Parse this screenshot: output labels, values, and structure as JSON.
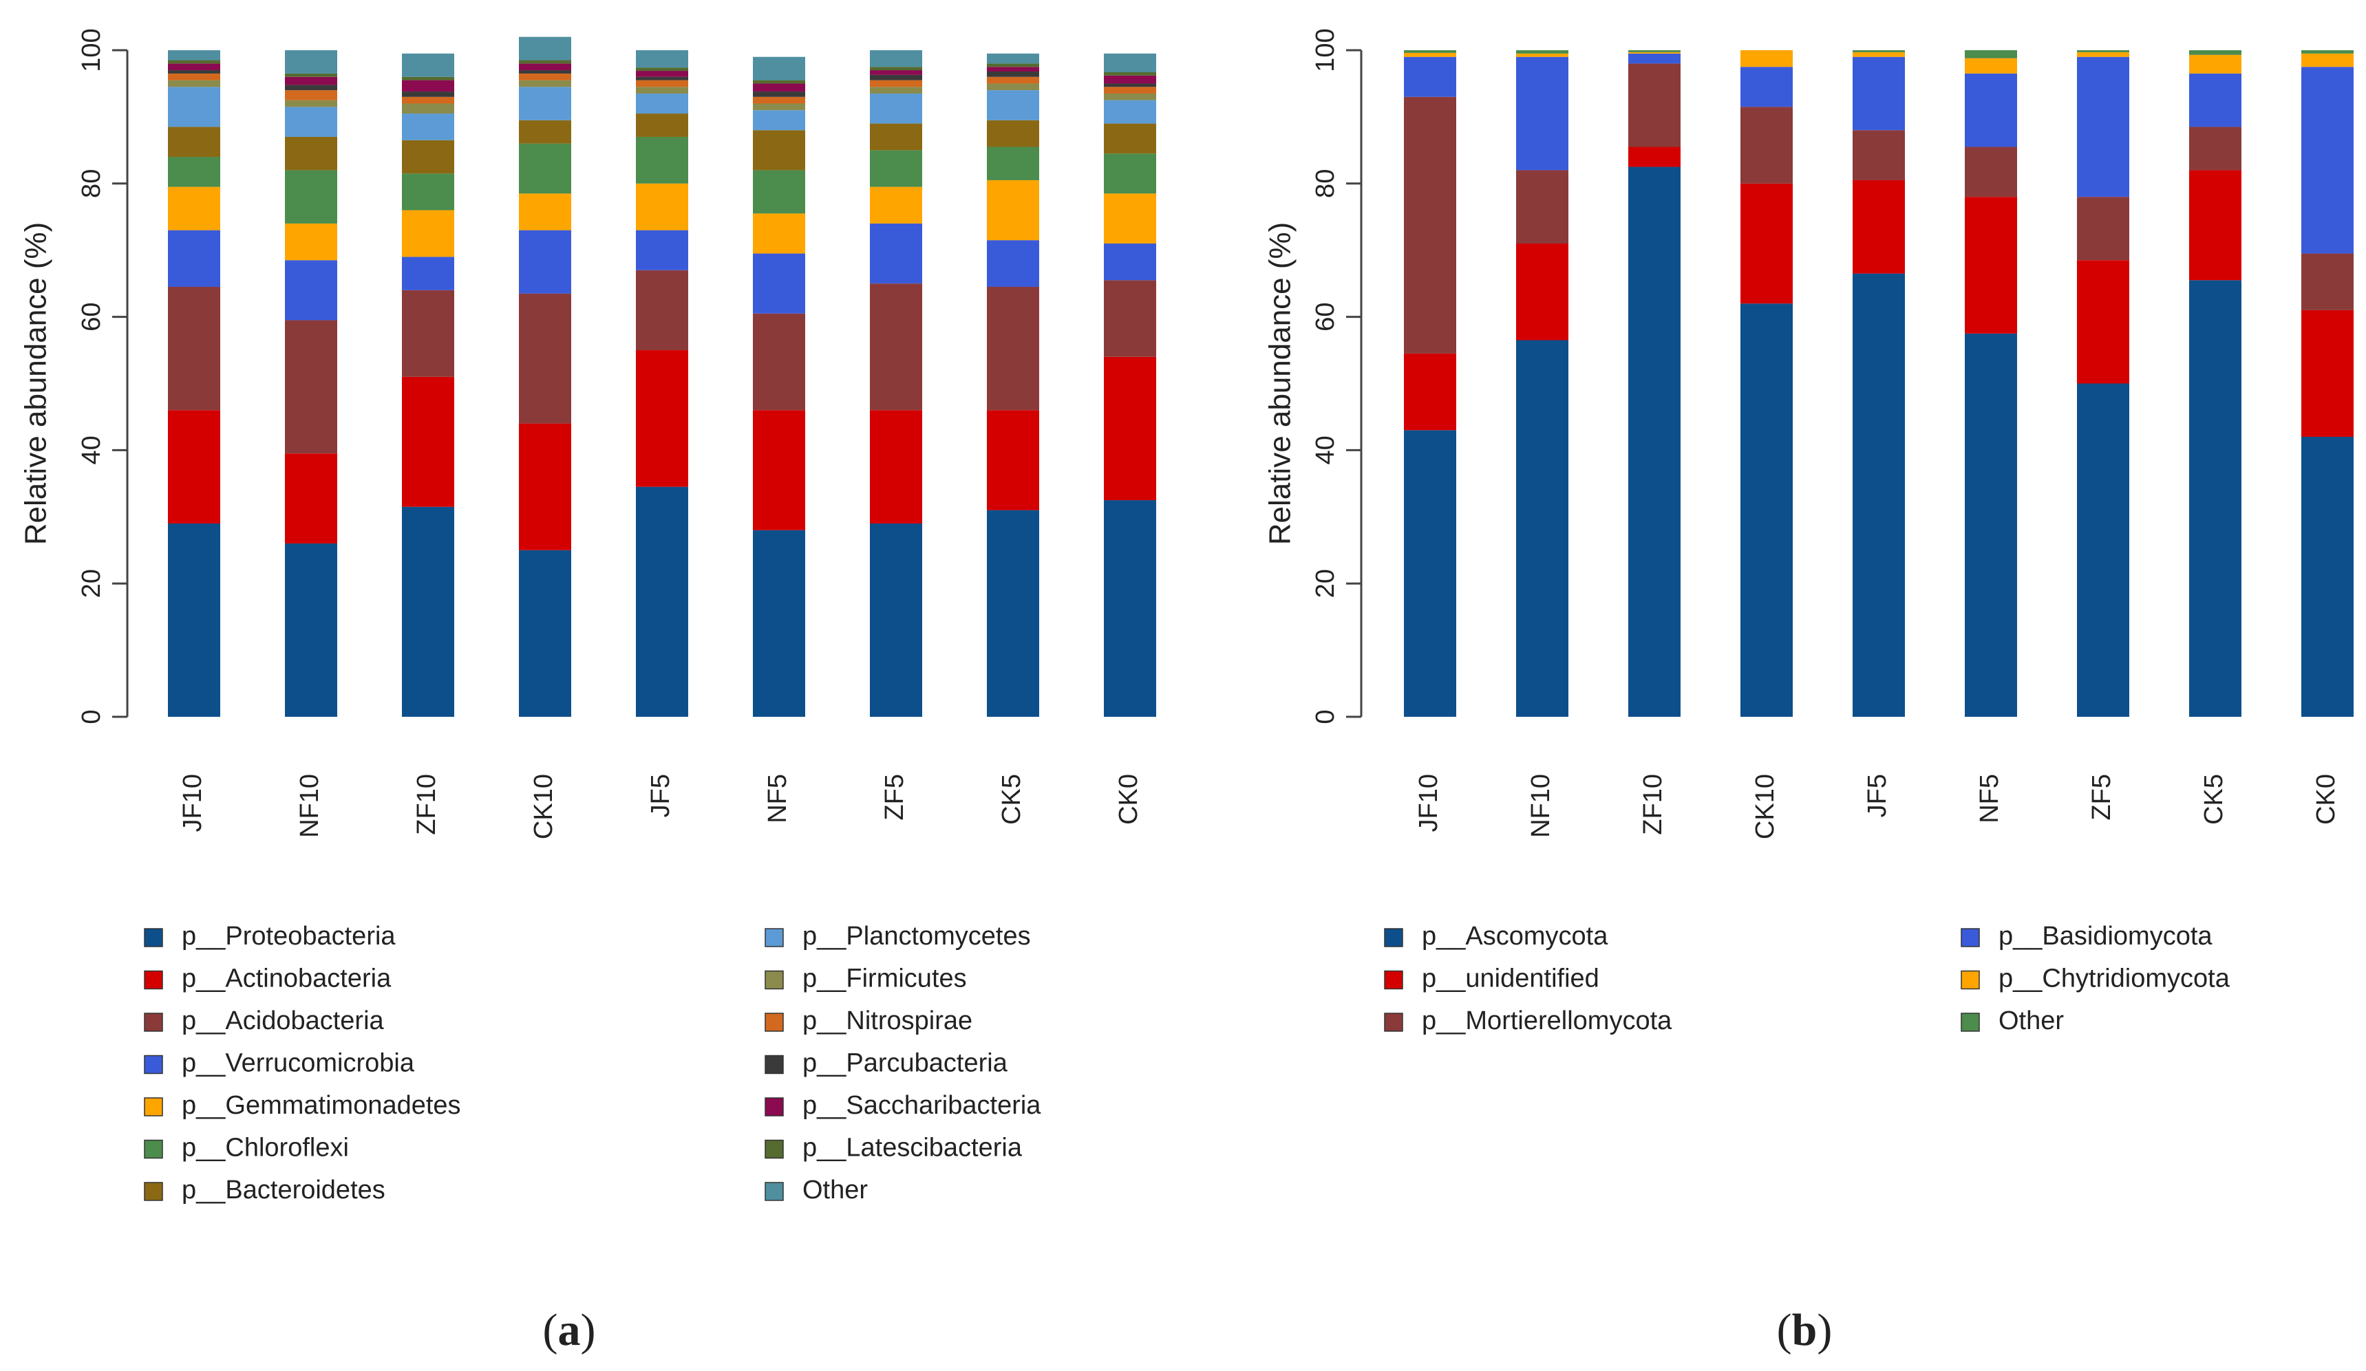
{
  "chart_data": [
    {
      "type": "bar",
      "stacked": true,
      "panel_label": "a",
      "ylabel": "Relative abundance (%)",
      "ylim": [
        0,
        100
      ],
      "yticks": [
        "0",
        "20",
        "40",
        "60",
        "80",
        "100"
      ],
      "categories": [
        "JF10",
        "NF10",
        "ZF10",
        "CK10",
        "JF5",
        "NF5",
        "ZF5",
        "CK5",
        "CK0"
      ],
      "legend_placement": "bottom",
      "series": [
        {
          "name": "p__Proteobacteria",
          "color": "#0d4f8b",
          "values": [
            29,
            26,
            31.5,
            25,
            34.5,
            28,
            29,
            31,
            32.5
          ]
        },
        {
          "name": "p__Actinobacteria",
          "color": "#d40000",
          "values": [
            17,
            13.5,
            19.5,
            19,
            20.5,
            18,
            17,
            15,
            21.5
          ]
        },
        {
          "name": "p__Acidobacteria",
          "color": "#8b3a3a",
          "values": [
            18.5,
            20,
            13,
            19.5,
            12,
            14.5,
            19,
            18.5,
            11.5
          ]
        },
        {
          "name": "p__Verrucomicrobia",
          "color": "#3a5bd9",
          "values": [
            8.5,
            9,
            5,
            9.5,
            6,
            9,
            9,
            7,
            5.5
          ]
        },
        {
          "name": "p__Gemmatimonadetes",
          "color": "#ffa500",
          "values": [
            6.5,
            5.5,
            7,
            5.5,
            7,
            6,
            5.5,
            9,
            7.5
          ]
        },
        {
          "name": "p__Chloroflexi",
          "color": "#4c8c4c",
          "values": [
            4.5,
            8,
            5.5,
            7.5,
            7,
            6.5,
            5.5,
            5,
            6
          ]
        },
        {
          "name": "p__Bacteroidetes",
          "color": "#8b6914",
          "values": [
            4.5,
            5,
            5,
            3.5,
            3.5,
            6,
            4,
            4,
            4.5
          ]
        },
        {
          "name": "p__Planctomycetes",
          "color": "#5c9bd5",
          "values": [
            6,
            4.5,
            4,
            5,
            3,
            3,
            4.5,
            4.5,
            3.5
          ]
        },
        {
          "name": "p__Firmicutes",
          "color": "#8b8b4c",
          "values": [
            1,
            1,
            1.5,
            1,
            1,
            1,
            1,
            1,
            1
          ]
        },
        {
          "name": "p__Nitrospirae",
          "color": "#d2691e",
          "values": [
            1,
            1.5,
            1,
            1,
            1,
            1,
            1,
            1,
            1
          ]
        },
        {
          "name": "p__Parcubacteria",
          "color": "#3a3a3a",
          "values": [
            0.5,
            0.8,
            0.8,
            0.5,
            0.5,
            0.8,
            0.8,
            0.8,
            0.5
          ]
        },
        {
          "name": "p__Saccharibacteria",
          "color": "#8b0a50",
          "values": [
            1,
            1.2,
            1.7,
            1,
            0.9,
            1.2,
            0.7,
            0.7,
            1.2
          ]
        },
        {
          "name": "p__Latescibacteria",
          "color": "#556b2f",
          "values": [
            0.5,
            0.5,
            0.5,
            0.5,
            0.5,
            0.5,
            0.5,
            0.5,
            0.5
          ]
        },
        {
          "name": "Other",
          "color": "#4f8fa0",
          "values": [
            1.5,
            3.5,
            3.5,
            3.5,
            2.6,
            3.5,
            2.5,
            1.5,
            2.8
          ]
        }
      ]
    },
    {
      "type": "bar",
      "stacked": true,
      "panel_label": "b",
      "ylabel": "Relative abundance (%)",
      "ylim": [
        0,
        100
      ],
      "yticks": [
        "0",
        "20",
        "40",
        "60",
        "80",
        "100"
      ],
      "categories": [
        "JF10",
        "NF10",
        "ZF10",
        "CK10",
        "JF5",
        "NF5",
        "ZF5",
        "CK5",
        "CK0"
      ],
      "legend_placement": "bottom",
      "series": [
        {
          "name": "p__Ascomycota",
          "color": "#0d4f8b",
          "values": [
            43,
            56.5,
            82.5,
            62,
            66.5,
            57.5,
            50,
            65.5,
            42
          ]
        },
        {
          "name": "p__unidentified",
          "color": "#d40000",
          "values": [
            11.5,
            14.5,
            3,
            18,
            14,
            20.5,
            18.5,
            16.5,
            19
          ]
        },
        {
          "name": "p__Mortierellomycota",
          "color": "#8b3a3a",
          "values": [
            38.5,
            11,
            12.5,
            11.5,
            7.5,
            7.5,
            9.5,
            6.5,
            8.5
          ]
        },
        {
          "name": "p__Basidiomycota",
          "color": "#3a5bd9",
          "values": [
            6,
            17,
            1.5,
            6,
            11,
            11,
            21,
            8,
            28
          ]
        },
        {
          "name": "p__Chytridiomycota",
          "color": "#ffa500",
          "values": [
            0.6,
            0.5,
            0.2,
            2.5,
            0.7,
            2.3,
            0.7,
            2.8,
            2
          ]
        },
        {
          "name": "Other",
          "color": "#4c8c4c",
          "values": [
            0.4,
            0.5,
            0.3,
            0,
            0.3,
            1.2,
            0.3,
            0.7,
            0.5
          ]
        }
      ]
    }
  ]
}
